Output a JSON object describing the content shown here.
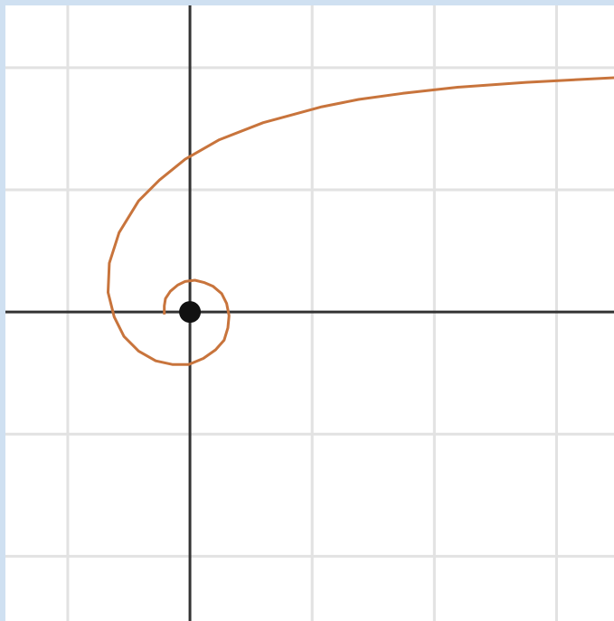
{
  "chart_data": {
    "type": "line",
    "x": [
      3.51,
      2.75,
      2.19,
      1.74,
      1.38,
      1.08,
      0.6,
      0.24,
      -0.04,
      -0.25,
      -0.42,
      -0.58,
      -0.66,
      -0.67,
      -0.62,
      -0.54,
      -0.42,
      -0.28,
      -0.14,
      -0.01,
      0.11,
      0.21,
      0.28,
      0.31,
      0.32,
      0.3,
      0.26,
      0.19,
      0.12,
      0.04,
      -0.04,
      -0.1,
      -0.16,
      -0.2,
      -0.21,
      -0.21
    ],
    "series": [
      {
        "color": "#c8743c",
        "values": [
          1.92,
          1.88,
          1.84,
          1.79,
          1.74,
          1.68,
          1.55,
          1.41,
          1.25,
          1.08,
          0.91,
          0.65,
          0.4,
          0.16,
          -0.04,
          -0.2,
          -0.32,
          -0.4,
          -0.43,
          -0.43,
          -0.38,
          -0.31,
          -0.23,
          -0.13,
          -0.03,
          0.07,
          0.15,
          0.21,
          0.24,
          0.26,
          0.25,
          0.22,
          0.17,
          0.11,
          0.05,
          -0.02
        ]
      }
    ],
    "xlim": [
      -1.51,
      3.47
    ],
    "ylim": [
      -2.53,
      2.51
    ],
    "xticks": [
      -1,
      0,
      1,
      2,
      3
    ],
    "yticks": [
      -2,
      -1,
      0,
      1,
      2
    ],
    "grid": true
  }
}
